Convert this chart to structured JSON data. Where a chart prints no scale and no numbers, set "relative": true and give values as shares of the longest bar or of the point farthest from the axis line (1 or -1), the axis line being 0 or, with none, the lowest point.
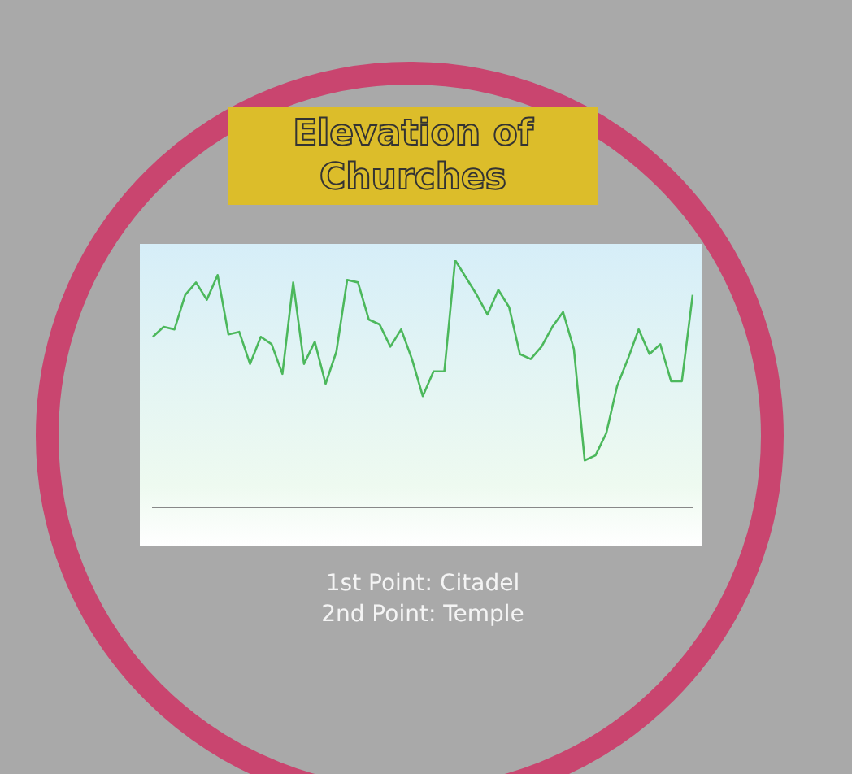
{
  "chart_data": {
    "type": "line",
    "title": "Elevation of Churches",
    "relative": true,
    "color": "#4cb85c",
    "categories": [
      null,
      null,
      null,
      null,
      null,
      null,
      null,
      null,
      null,
      null,
      null,
      null,
      null,
      null,
      null,
      null,
      null,
      null,
      null,
      null,
      null,
      null,
      null,
      null,
      null,
      null,
      null,
      null,
      null,
      null,
      null,
      null,
      null,
      null,
      null,
      null,
      null,
      null,
      null,
      null,
      null,
      null,
      null,
      null,
      null,
      null,
      null,
      null,
      null,
      null,
      null
    ],
    "values": [
      0.69,
      0.73,
      0.72,
      0.86,
      0.91,
      0.84,
      0.94,
      0.7,
      0.71,
      0.58,
      0.69,
      0.66,
      0.54,
      0.91,
      0.58,
      0.67,
      0.5,
      0.63,
      0.92,
      0.91,
      0.76,
      0.74,
      0.65,
      0.72,
      0.6,
      0.45,
      0.55,
      0.55,
      1,
      0.93,
      0.86,
      0.78,
      0.88,
      0.81,
      0.62,
      0.6,
      0.65,
      0.73,
      0.79,
      0.64,
      0.19,
      0.21,
      0.3,
      0.49,
      0.6,
      0.72,
      0.62,
      0.66,
      0.51,
      0.51,
      0.86
    ],
    "annotations": [
      "1st Point: Citadel",
      "2nd Point: Temple"
    ]
  }
}
